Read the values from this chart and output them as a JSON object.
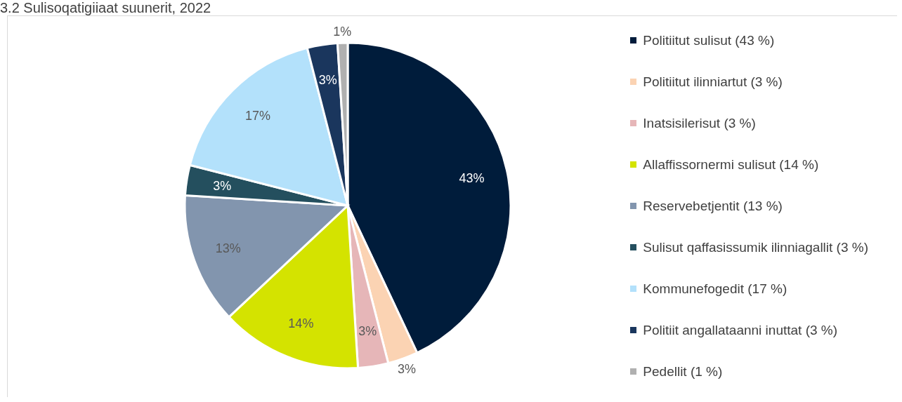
{
  "chart_data": {
    "type": "pie",
    "title": "3.2 Sulisoqatigiiaat suunerit, 2022",
    "categories": [
      "Politiitut sulisut (43 %)",
      "Politiitut ilinniartut  (3 %)",
      "Inatsisilerisut (3 %)",
      "Allaffissornermi sulisut (14 %)",
      "Reservebetjentit (13 %)",
      "Sulisut qaffasissumik ilinniagallit (3 %)",
      "Kommunefogedit (17 %)",
      "Politiit angallataanni inuttat (3 %)",
      "Pedellit (1 %)"
    ],
    "values": [
      43,
      3,
      3,
      14,
      13,
      3,
      17,
      3,
      1
    ],
    "value_labels": [
      "43%",
      "3%",
      "3%",
      "14%",
      "13%",
      "3%",
      "17%",
      "3%",
      "1%"
    ],
    "colors": [
      "#001c3b",
      "#fbd3b3",
      "#e6b6b8",
      "#d4e300",
      "#8295ae",
      "#244f5e",
      "#b3e1fb",
      "#1a365d",
      "#b0b0b0"
    ],
    "legend": "right"
  }
}
